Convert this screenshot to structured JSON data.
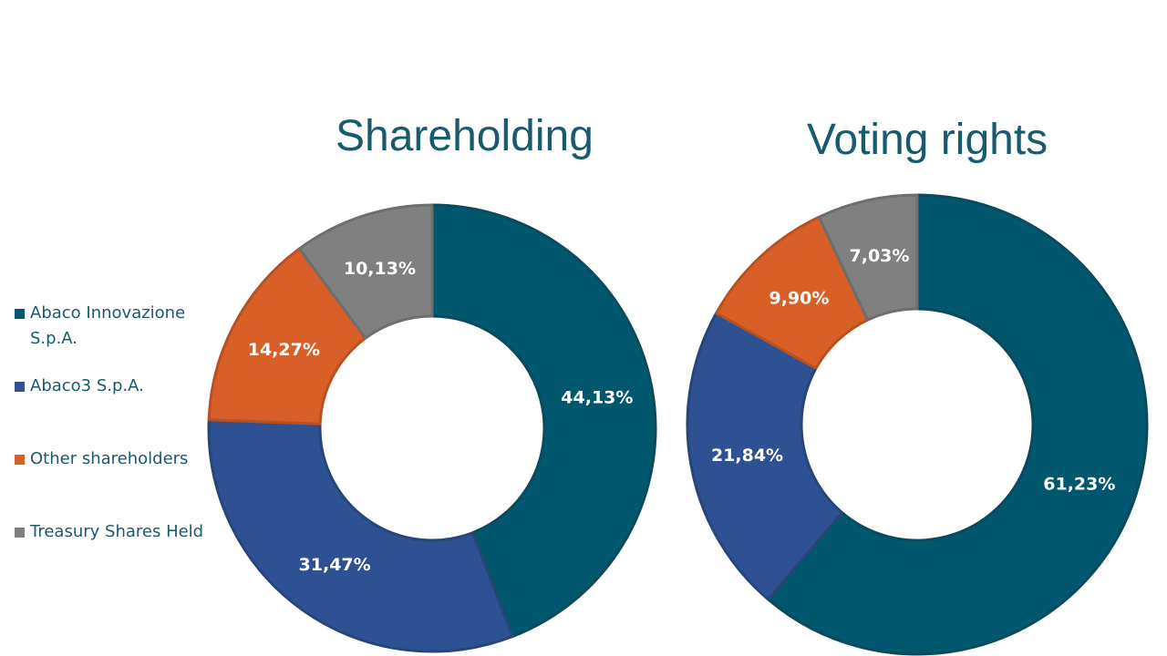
{
  "chart_data": [
    {
      "type": "pie",
      "title": "Shareholding",
      "categories": [
        "Abaco Innovazione S.p.A.",
        "Abaco3 S.p.A.",
        "Other shareholders",
        "Treasury Shares Held"
      ],
      "values": [
        44.13,
        31.47,
        14.27,
        10.13
      ],
      "data_labels": [
        "44,13%",
        "31,47%",
        "14,27%",
        "10,13%"
      ],
      "colors": [
        "#00576e",
        "#2e5193",
        "#d85f27",
        "#808080"
      ]
    },
    {
      "type": "pie",
      "title": "Voting rights",
      "categories": [
        "Abaco Innovazione S.p.A.",
        "Abaco3 S.p.A.",
        "Other shareholders",
        "Treasury Shares Held"
      ],
      "values": [
        61.23,
        21.84,
        9.9,
        7.03
      ],
      "data_labels": [
        "61,23%",
        "21,84%",
        "9,90%",
        "7,03%"
      ],
      "colors": [
        "#00576e",
        "#2e5193",
        "#d85f27",
        "#808080"
      ]
    }
  ],
  "legend": {
    "placement": "left",
    "items": [
      {
        "label": "Abaco Innovazione S.p.A.",
        "color": "#00576e"
      },
      {
        "label": "Abaco3 S.p.A.",
        "color": "#2e5193"
      },
      {
        "label": "Other shareholders",
        "color": "#d85f27"
      },
      {
        "label": "Treasury Shares Held",
        "color": "#808080"
      }
    ]
  },
  "style": {
    "title_color": "#1a5a6e",
    "legend_text_color": "#1a5a6e",
    "label_color": "#ffffff",
    "slice_border_colors": [
      "#0a4a5c",
      "#274677",
      "#b8501f",
      "#6e6e6e"
    ]
  }
}
